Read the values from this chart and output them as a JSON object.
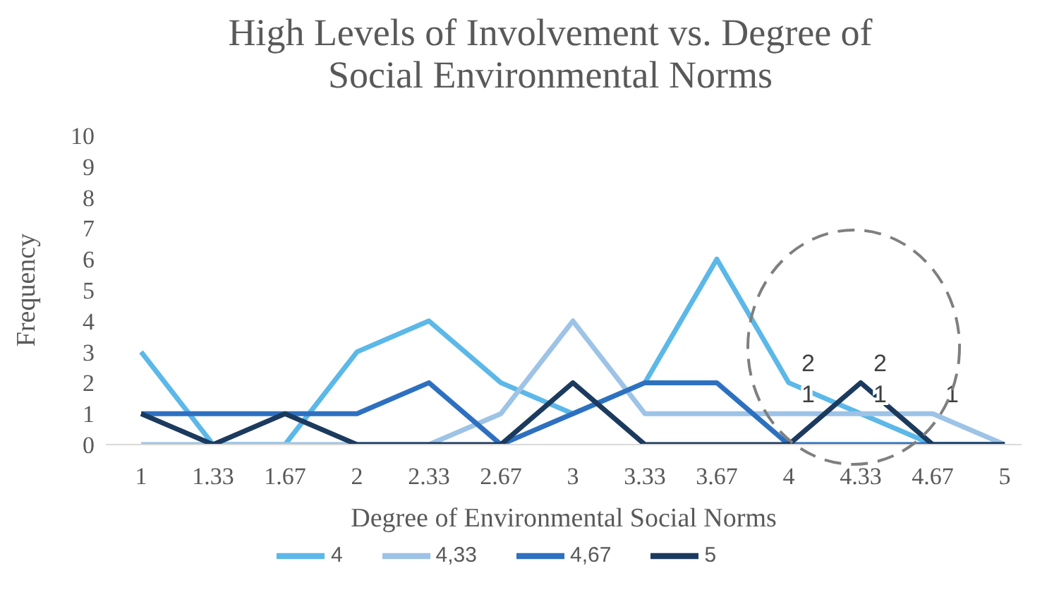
{
  "chart_data": {
    "type": "line",
    "title": "High Levels of Involvement vs. Degree of Social Environmental Norms",
    "xlabel": "Degree of Environmental Social Norms",
    "ylabel": "Frequency",
    "categories": [
      "1",
      "1.33",
      "1.67",
      "2",
      "2.33",
      "2.67",
      "3",
      "3.33",
      "3.67",
      "4",
      "4.33",
      "4.67",
      "5"
    ],
    "series": [
      {
        "name": "4",
        "color": "#5bb8e8",
        "values": [
          3,
          0,
          0,
          3,
          4,
          2,
          1,
          2,
          6,
          2,
          1,
          0,
          0
        ]
      },
      {
        "name": "4,33",
        "color": "#9dc3e6",
        "values": [
          0,
          0,
          0,
          0,
          0,
          1,
          4,
          1,
          1,
          1,
          1,
          1,
          0
        ]
      },
      {
        "name": "4,67",
        "color": "#2e70c0",
        "values": [
          1,
          1,
          1,
          1,
          2,
          0,
          1,
          2,
          2,
          0,
          0,
          0,
          0
        ]
      },
      {
        "name": "5",
        "color": "#1b3a5e",
        "values": [
          1,
          0,
          1,
          0,
          0,
          0,
          2,
          0,
          0,
          0,
          2,
          0,
          0
        ]
      }
    ],
    "ylim": [
      0,
      10
    ],
    "yticks": [
      0,
      1,
      2,
      3,
      4,
      5,
      6,
      7,
      8,
      9,
      10
    ],
    "grid": false,
    "legend": "bottom",
    "marker": "none",
    "line_style": "solid",
    "annotations": [
      {
        "text": "2",
        "x": "4",
        "y": 2
      },
      {
        "text": "1",
        "x": "4",
        "y": 1
      },
      {
        "text": "2",
        "x": "4.33",
        "y": 2
      },
      {
        "text": "1",
        "x": "4.33",
        "y": 1
      },
      {
        "text": "1",
        "x": "4.67",
        "y": 1
      }
    ]
  }
}
